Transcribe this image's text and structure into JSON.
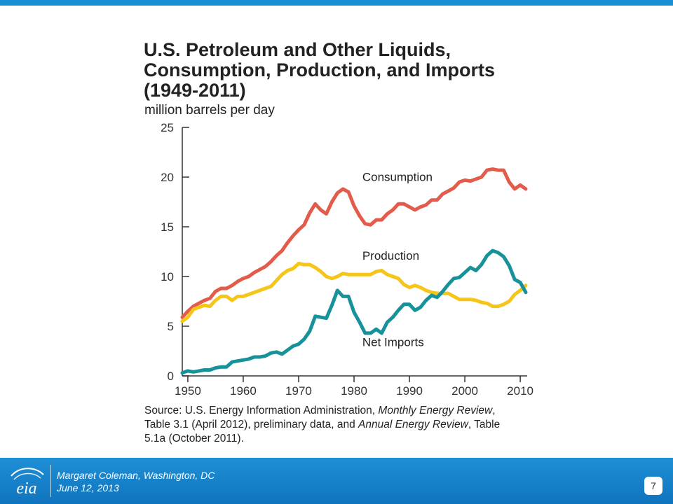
{
  "slide": {
    "title_lines": [
      "U.S. Petroleum and Other Liquids,",
      "Consumption, Production, and Imports",
      "(1949-2011)"
    ],
    "unit_label": "million barrels per day",
    "source_lines": [
      "Source: U.S. Energy Information Administration, Monthly Energy Review,",
      "Table 3.1 (April 2012), preliminary data, and Annual Energy Review, Table",
      "5.1a (October 2011)."
    ]
  },
  "footer": {
    "logo_text": "eia",
    "presenter": "Margaret Coleman, Washington, DC",
    "date": "June 12, 2013",
    "page_number": "7"
  },
  "colors": {
    "top_bar": "#1a8fd3",
    "footer": "#1480c8",
    "consumption": "#e35b4a",
    "production": "#f5c518",
    "net_imports": "#17929a",
    "axis": "#333333"
  },
  "chart_data": {
    "type": "line",
    "title": "U.S. Petroleum and Other Liquids, Consumption, Production, and Imports (1949-2011)",
    "ylabel": "million barrels per day",
    "xlabel": "",
    "xlim": [
      1949,
      2011
    ],
    "ylim": [
      0,
      25
    ],
    "x_ticks": [
      1950,
      1960,
      1970,
      1980,
      1990,
      2000,
      2010
    ],
    "y_ticks": [
      0,
      5,
      10,
      15,
      20,
      25
    ],
    "grid": false,
    "legend": "inline labels",
    "x": [
      1949,
      1950,
      1951,
      1952,
      1953,
      1954,
      1955,
      1956,
      1957,
      1958,
      1959,
      1960,
      1961,
      1962,
      1963,
      1964,
      1965,
      1966,
      1967,
      1968,
      1969,
      1970,
      1971,
      1972,
      1973,
      1974,
      1975,
      1976,
      1977,
      1978,
      1979,
      1980,
      1981,
      1982,
      1983,
      1984,
      1985,
      1986,
      1987,
      1988,
      1989,
      1990,
      1991,
      1992,
      1993,
      1994,
      1995,
      1996,
      1997,
      1998,
      1999,
      2000,
      2001,
      2002,
      2003,
      2004,
      2005,
      2006,
      2007,
      2008,
      2009,
      2010,
      2011
    ],
    "series": [
      {
        "name": "Consumption",
        "values": [
          5.9,
          6.5,
          7.0,
          7.3,
          7.6,
          7.8,
          8.5,
          8.8,
          8.8,
          9.1,
          9.5,
          9.8,
          10.0,
          10.4,
          10.7,
          11.0,
          11.5,
          12.1,
          12.6,
          13.4,
          14.1,
          14.7,
          15.2,
          16.4,
          17.3,
          16.7,
          16.3,
          17.5,
          18.4,
          18.8,
          18.5,
          17.1,
          16.1,
          15.3,
          15.2,
          15.7,
          15.7,
          16.3,
          16.7,
          17.3,
          17.3,
          17.0,
          16.7,
          17.0,
          17.2,
          17.7,
          17.7,
          18.3,
          18.6,
          18.9,
          19.5,
          19.7,
          19.6,
          19.8,
          20.0,
          20.7,
          20.8,
          20.7,
          20.7,
          19.5,
          18.8,
          19.2,
          18.8
        ]
      },
      {
        "name": "Production",
        "values": [
          5.5,
          5.9,
          6.7,
          6.9,
          7.1,
          7.0,
          7.6,
          8.0,
          8.0,
          7.6,
          8.0,
          8.0,
          8.2,
          8.4,
          8.6,
          8.8,
          9.0,
          9.6,
          10.2,
          10.6,
          10.8,
          11.3,
          11.2,
          11.2,
          10.9,
          10.5,
          10.0,
          9.8,
          10.0,
          10.3,
          10.2,
          10.2,
          10.2,
          10.2,
          10.2,
          10.5,
          10.6,
          10.2,
          10.0,
          9.8,
          9.2,
          8.9,
          9.1,
          8.9,
          8.6,
          8.4,
          8.3,
          8.3,
          8.3,
          8.0,
          7.7,
          7.7,
          7.7,
          7.6,
          7.4,
          7.3,
          7.0,
          7.0,
          7.2,
          7.5,
          8.2,
          8.6,
          9.1
        ]
      },
      {
        "name": "Net Imports",
        "values": [
          0.3,
          0.5,
          0.4,
          0.5,
          0.6,
          0.6,
          0.8,
          0.9,
          0.9,
          1.4,
          1.5,
          1.6,
          1.7,
          1.9,
          1.9,
          2.0,
          2.3,
          2.4,
          2.2,
          2.6,
          3.0,
          3.2,
          3.7,
          4.5,
          6.0,
          5.9,
          5.8,
          7.1,
          8.6,
          8.0,
          8.0,
          6.4,
          5.4,
          4.3,
          4.3,
          4.7,
          4.3,
          5.4,
          5.9,
          6.6,
          7.2,
          7.2,
          6.6,
          6.9,
          7.6,
          8.1,
          7.9,
          8.5,
          9.2,
          9.8,
          9.9,
          10.4,
          10.9,
          10.6,
          11.2,
          12.1,
          12.6,
          12.4,
          12.0,
          11.1,
          9.7,
          9.4,
          8.4
        ]
      }
    ],
    "series_labels": [
      "Consumption",
      "Production",
      "Net Imports"
    ]
  }
}
